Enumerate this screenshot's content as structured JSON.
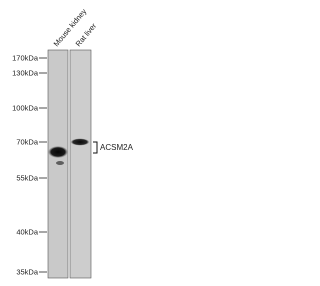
{
  "lanes": [
    "Mouse kidney",
    "Rat liver"
  ],
  "markers": [
    "170kDa",
    "130kDa",
    "100kDa",
    "70kDa",
    "55kDa",
    "40kDa",
    "35kDa"
  ],
  "target": "ACSM2A"
}
